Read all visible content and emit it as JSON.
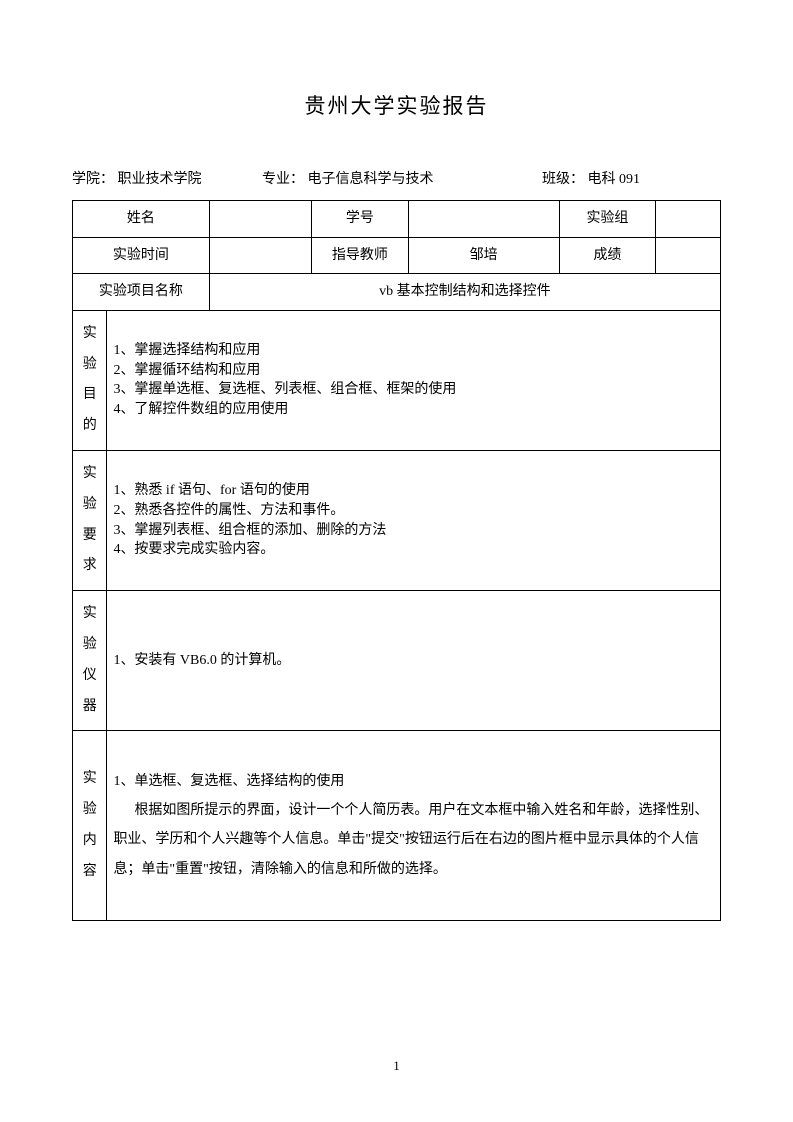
{
  "title": "贵州大学实验报告",
  "header": {
    "college_label": "学院：",
    "college_value": "职业技术学院",
    "major_label": "专业：",
    "major_value": "电子信息科学与技术",
    "class_label": "班级：",
    "class_value": "电科 091"
  },
  "labels": {
    "name": "姓名",
    "student_id": "学号",
    "group": "实验组",
    "time": "实验时间",
    "teacher": "指导教师",
    "score": "成绩",
    "project": "实验项目名称"
  },
  "values": {
    "name": "",
    "student_id": "",
    "group": "",
    "time": "",
    "teacher": "邹培",
    "score": "",
    "project": "vb 基本控制结构和选择控件"
  },
  "sections": {
    "purpose": {
      "label": "实验目的",
      "lines": [
        "1、掌握选择结构和应用",
        "2、掌握循环结构和应用",
        "3、掌握单选框、复选框、列表框、组合框、框架的使用",
        "4、了解控件数组的应用使用"
      ]
    },
    "requirements": {
      "label": "实验要求",
      "lines": [
        "1、熟悉 if 语句、for 语句的使用",
        "2、熟悉各控件的属性、方法和事件。",
        "3、掌握列表框、组合框的添加、删除的方法",
        "4、按要求完成实验内容。"
      ]
    },
    "equipment": {
      "label": "实验仪器",
      "lines": [
        "1、安装有 VB6.0 的计算机。"
      ]
    },
    "content": {
      "label": "实验内容",
      "heading": "1、单选框、复选框、选择结构的使用",
      "paragraph": "根据如图所提示的界面，设计一个个人简历表。用户在文本框中输入姓名和年龄，选择性别、职业、学历和个人兴趣等个人信息。单击\"提交\"按钮运行后在右边的图片框中显示具体的个人信息；单击\"重置\"按钮，清除输入的信息和所做的选择。"
    }
  },
  "page_number": "1"
}
